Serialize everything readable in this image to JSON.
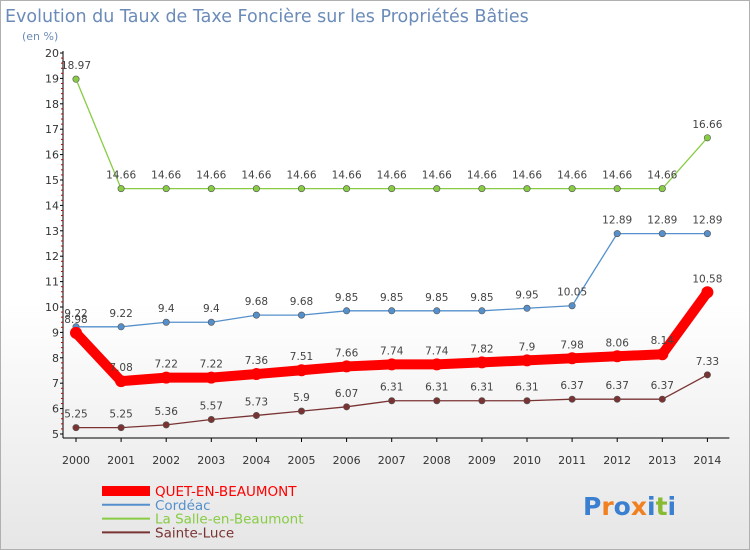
{
  "chart_data": {
    "type": "line",
    "title": "Evolution du Taux de Taxe Foncière sur les Propriétés Bâties",
    "subtitle": "(en %)",
    "xlabel": "",
    "ylabel": "",
    "categories": [
      "2000",
      "2001",
      "2002",
      "2003",
      "2004",
      "2005",
      "2006",
      "2007",
      "2008",
      "2009",
      "2010",
      "2011",
      "2012",
      "2013",
      "2014"
    ],
    "ylim": [
      5,
      20
    ],
    "yticks": [
      5,
      6,
      7,
      8,
      9,
      10,
      11,
      12,
      13,
      14,
      15,
      16,
      17,
      18,
      19,
      20
    ],
    "grid": false,
    "legend": "bottom-left",
    "series": [
      {
        "name": "QUET-EN-BEAUMONT",
        "color": "#ff0000",
        "values": [
          8.98,
          7.08,
          7.22,
          7.22,
          7.36,
          7.51,
          7.66,
          7.74,
          7.74,
          7.82,
          7.9,
          7.98,
          8.06,
          8.14,
          10.58
        ],
        "labels": [
          "8.98",
          "7.08",
          "7.22",
          "7.22",
          "7.36",
          "7.51",
          "7.66",
          "7.74",
          "7.74",
          "7.82",
          "7.9",
          "7.98",
          "8.06",
          "8.14",
          "10.58"
        ]
      },
      {
        "name": "Cordéac",
        "color": "#5590cc",
        "values": [
          9.22,
          9.22,
          9.4,
          9.4,
          9.68,
          9.68,
          9.85,
          9.85,
          9.85,
          9.85,
          9.95,
          10.05,
          12.89,
          12.89,
          12.89
        ],
        "labels": [
          "9.22",
          "9.22",
          "9.4",
          "9.4",
          "9.68",
          "9.68",
          "9.85",
          "9.85",
          "9.85",
          "9.85",
          "9.95",
          "10.05",
          "12.89",
          "12.89",
          "12.89"
        ]
      },
      {
        "name": "La Salle-en-Beaumont",
        "color": "#88cc44",
        "values": [
          18.97,
          14.66,
          14.66,
          14.66,
          14.66,
          14.66,
          14.66,
          14.66,
          14.66,
          14.66,
          14.66,
          14.66,
          14.66,
          14.66,
          16.66
        ],
        "labels": [
          "18.97",
          "14.66",
          "14.66",
          "14.66",
          "14.66",
          "14.66",
          "14.66",
          "14.66",
          "14.66",
          "14.66",
          "14.66",
          "14.66",
          "14.66",
          "14.66",
          "16.66"
        ]
      },
      {
        "name": "Sainte-Luce",
        "color": "#7a3333",
        "values": [
          5.25,
          5.25,
          5.36,
          5.57,
          5.73,
          5.9,
          6.07,
          6.31,
          6.31,
          6.31,
          6.31,
          6.37,
          6.37,
          6.37,
          7.33
        ],
        "labels": [
          "5.25",
          "5.25",
          "5.36",
          "5.57",
          "5.73",
          "5.9",
          "6.07",
          "6.31",
          "6.31",
          "6.31",
          "6.31",
          "6.37",
          "6.37",
          "6.37",
          "7.33"
        ]
      }
    ]
  },
  "logo": {
    "text": "Proxiti",
    "colors": [
      "#3a7fd0",
      "#f08020",
      "#3a7fd0",
      "#f08020",
      "#3a7fd0",
      "#88bb33",
      "#3a7fd0"
    ]
  }
}
